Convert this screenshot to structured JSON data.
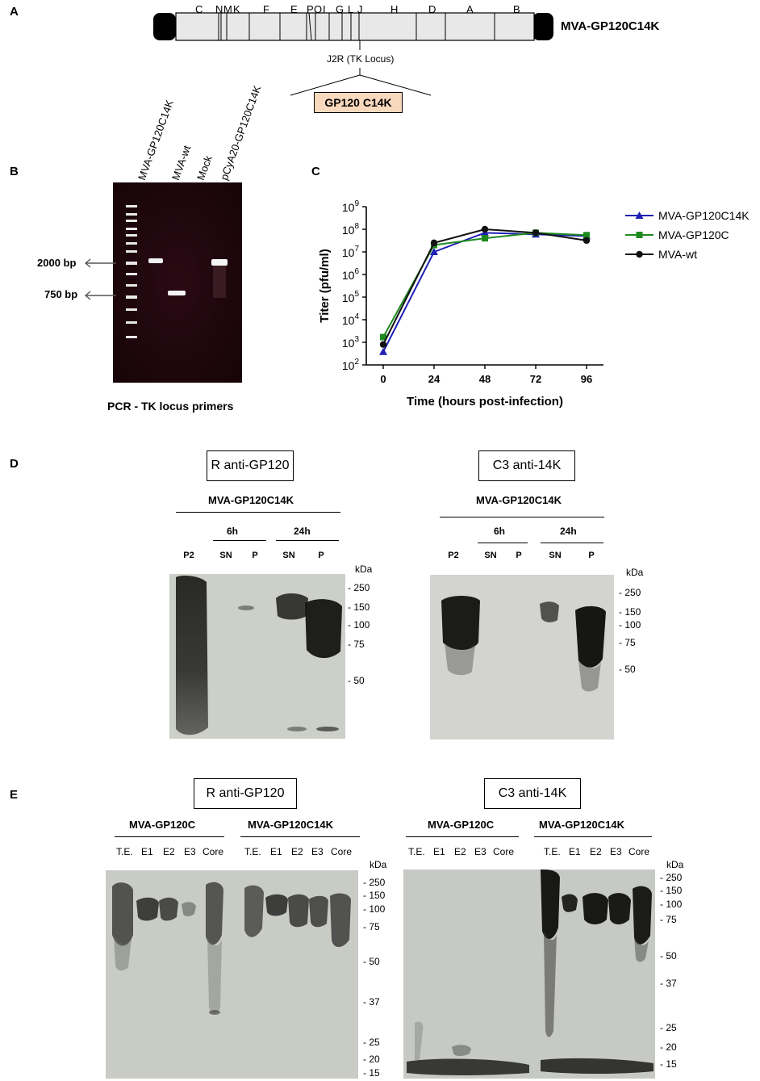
{
  "panels": {
    "a": {
      "label": "A",
      "construct_name": "MVA-GP120C14K",
      "fragments": [
        "C",
        "N",
        "M",
        "K",
        "F",
        "E",
        "P",
        "O",
        "I",
        "G",
        "L",
        "J",
        "H",
        "D",
        "A",
        "B"
      ],
      "locus_label": "J2R (TK Locus)",
      "insert_label": "GP120 C14K",
      "insert_color": "#f9d9bd"
    },
    "b": {
      "label": "B",
      "lanes": [
        "MVA-GP120C14K",
        "MVA-wt",
        "Mock",
        "pCyA20-GP120C14K"
      ],
      "markers": [
        "2000 bp",
        "750 bp"
      ],
      "caption": "PCR - TK locus primers"
    },
    "c": {
      "label": "C",
      "chart_data": {
        "type": "line",
        "xlabel": "Time (hours post-infection)",
        "ylabel": "Titer (pfu/ml)",
        "y_scale": "log10",
        "ylim": [
          100,
          1000000000
        ],
        "x": [
          0,
          24,
          48,
          72,
          96
        ],
        "x_ticks": [
          "0",
          "24",
          "48",
          "72",
          "96"
        ],
        "y_tick_exponents": [
          "2",
          "3",
          "4",
          "5",
          "6",
          "7",
          "8",
          "9"
        ],
        "y_tick_base": "10",
        "series": [
          {
            "name": "MVA-GP120C14K",
            "color": "#1f1fb4",
            "marker": "triangle",
            "values": [
              380,
              10000000,
              70000000,
              60000000,
              50000000
            ]
          },
          {
            "name": "MVA-GP120C",
            "color": "#1e8a1e",
            "marker": "square",
            "values": [
              1700,
              20000000,
              40000000,
              70000000,
              55000000
            ]
          },
          {
            "name": "MVA-wt",
            "color": "#111111",
            "marker": "circle",
            "values": [
              800,
              25000000,
              100000000,
              70000000,
              32000000
            ]
          }
        ]
      }
    },
    "d": {
      "label": "D",
      "left": {
        "antibody": "R anti-GP120",
        "virus": "MVA-GP120C14K",
        "time_groups": [
          "6h",
          "24h"
        ],
        "lanes": [
          "P2",
          "SN",
          "P",
          "SN",
          "P"
        ],
        "kda_label": "kDa",
        "markers": [
          "- 250",
          "- 150",
          "- 100",
          "- 75",
          "- 50"
        ]
      },
      "right": {
        "antibody": "C3 anti-14K",
        "virus": "MVA-GP120C14K",
        "time_groups": [
          "6h",
          "24h"
        ],
        "lanes": [
          "P2",
          "SN",
          "P",
          "SN",
          "P"
        ],
        "kda_label": "kDa",
        "markers": [
          "- 250",
          "- 150",
          "- 100",
          "- 75",
          "- 50"
        ]
      }
    },
    "e": {
      "label": "E",
      "left": {
        "antibody": "R anti-GP120",
        "groups": [
          "MVA-GP120C",
          "MVA-GP120C14K"
        ],
        "lanes": [
          "T.E.",
          "E1",
          "E2",
          "E3",
          "Core",
          "T.E.",
          "E1",
          "E2",
          "E3",
          "Core"
        ],
        "kda_label": "kDa",
        "markers": [
          "- 250",
          "- 150",
          "- 100",
          "- 75",
          "- 50",
          "- 37",
          "- 25",
          "- 20",
          "- 15"
        ]
      },
      "right": {
        "antibody": "C3 anti-14K",
        "groups": [
          "MVA-GP120C",
          "MVA-GP120C14K"
        ],
        "lanes": [
          "T.E.",
          "E1",
          "E2",
          "E3",
          "Core",
          "T.E.",
          "E1",
          "E2",
          "E3",
          "Core"
        ],
        "kda_label": "kDa",
        "markers": [
          "- 250",
          "- 150",
          "- 100",
          "- 75",
          "- 50",
          "- 37",
          "- 25",
          "- 20",
          "- 15"
        ]
      }
    }
  }
}
